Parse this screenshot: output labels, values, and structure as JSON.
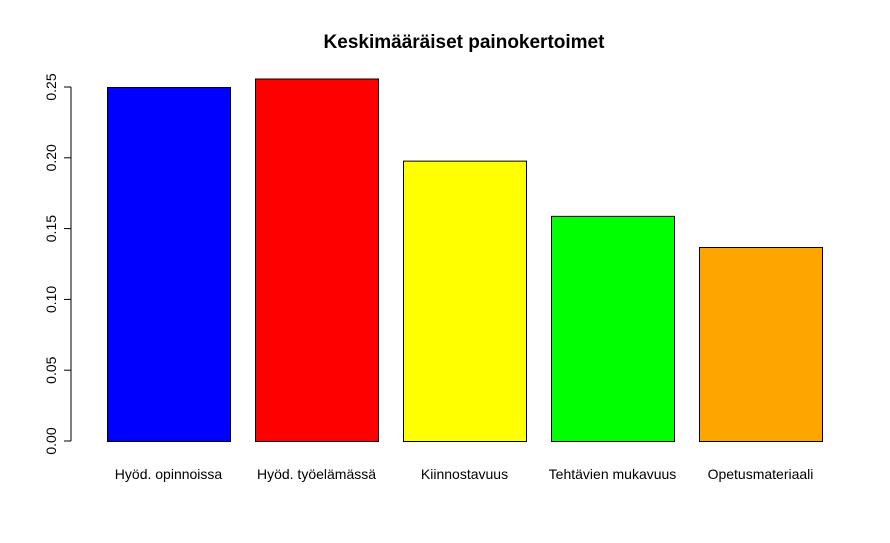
{
  "chart_data": {
    "type": "bar",
    "title": "Keskimääräiset painokertoimet",
    "xlabel": "",
    "ylabel": "",
    "categories": [
      "Hyöd. opinnoissa",
      "Hyöd. työelämässä",
      "Kiinnostavuus",
      "Tehtävien mukavuus",
      "Opetusmateriaali"
    ],
    "values": [
      0.25,
      0.256,
      0.198,
      0.159,
      0.137
    ],
    "colors": [
      "#0000ff",
      "#ff0000",
      "#ffff00",
      "#00ff00",
      "#ffa500"
    ],
    "ylim": [
      0,
      0.25
    ],
    "yticks": [
      "0.00",
      "0.05",
      "0.10",
      "0.15",
      "0.20",
      "0.25"
    ],
    "grid": false,
    "legend": "none"
  }
}
